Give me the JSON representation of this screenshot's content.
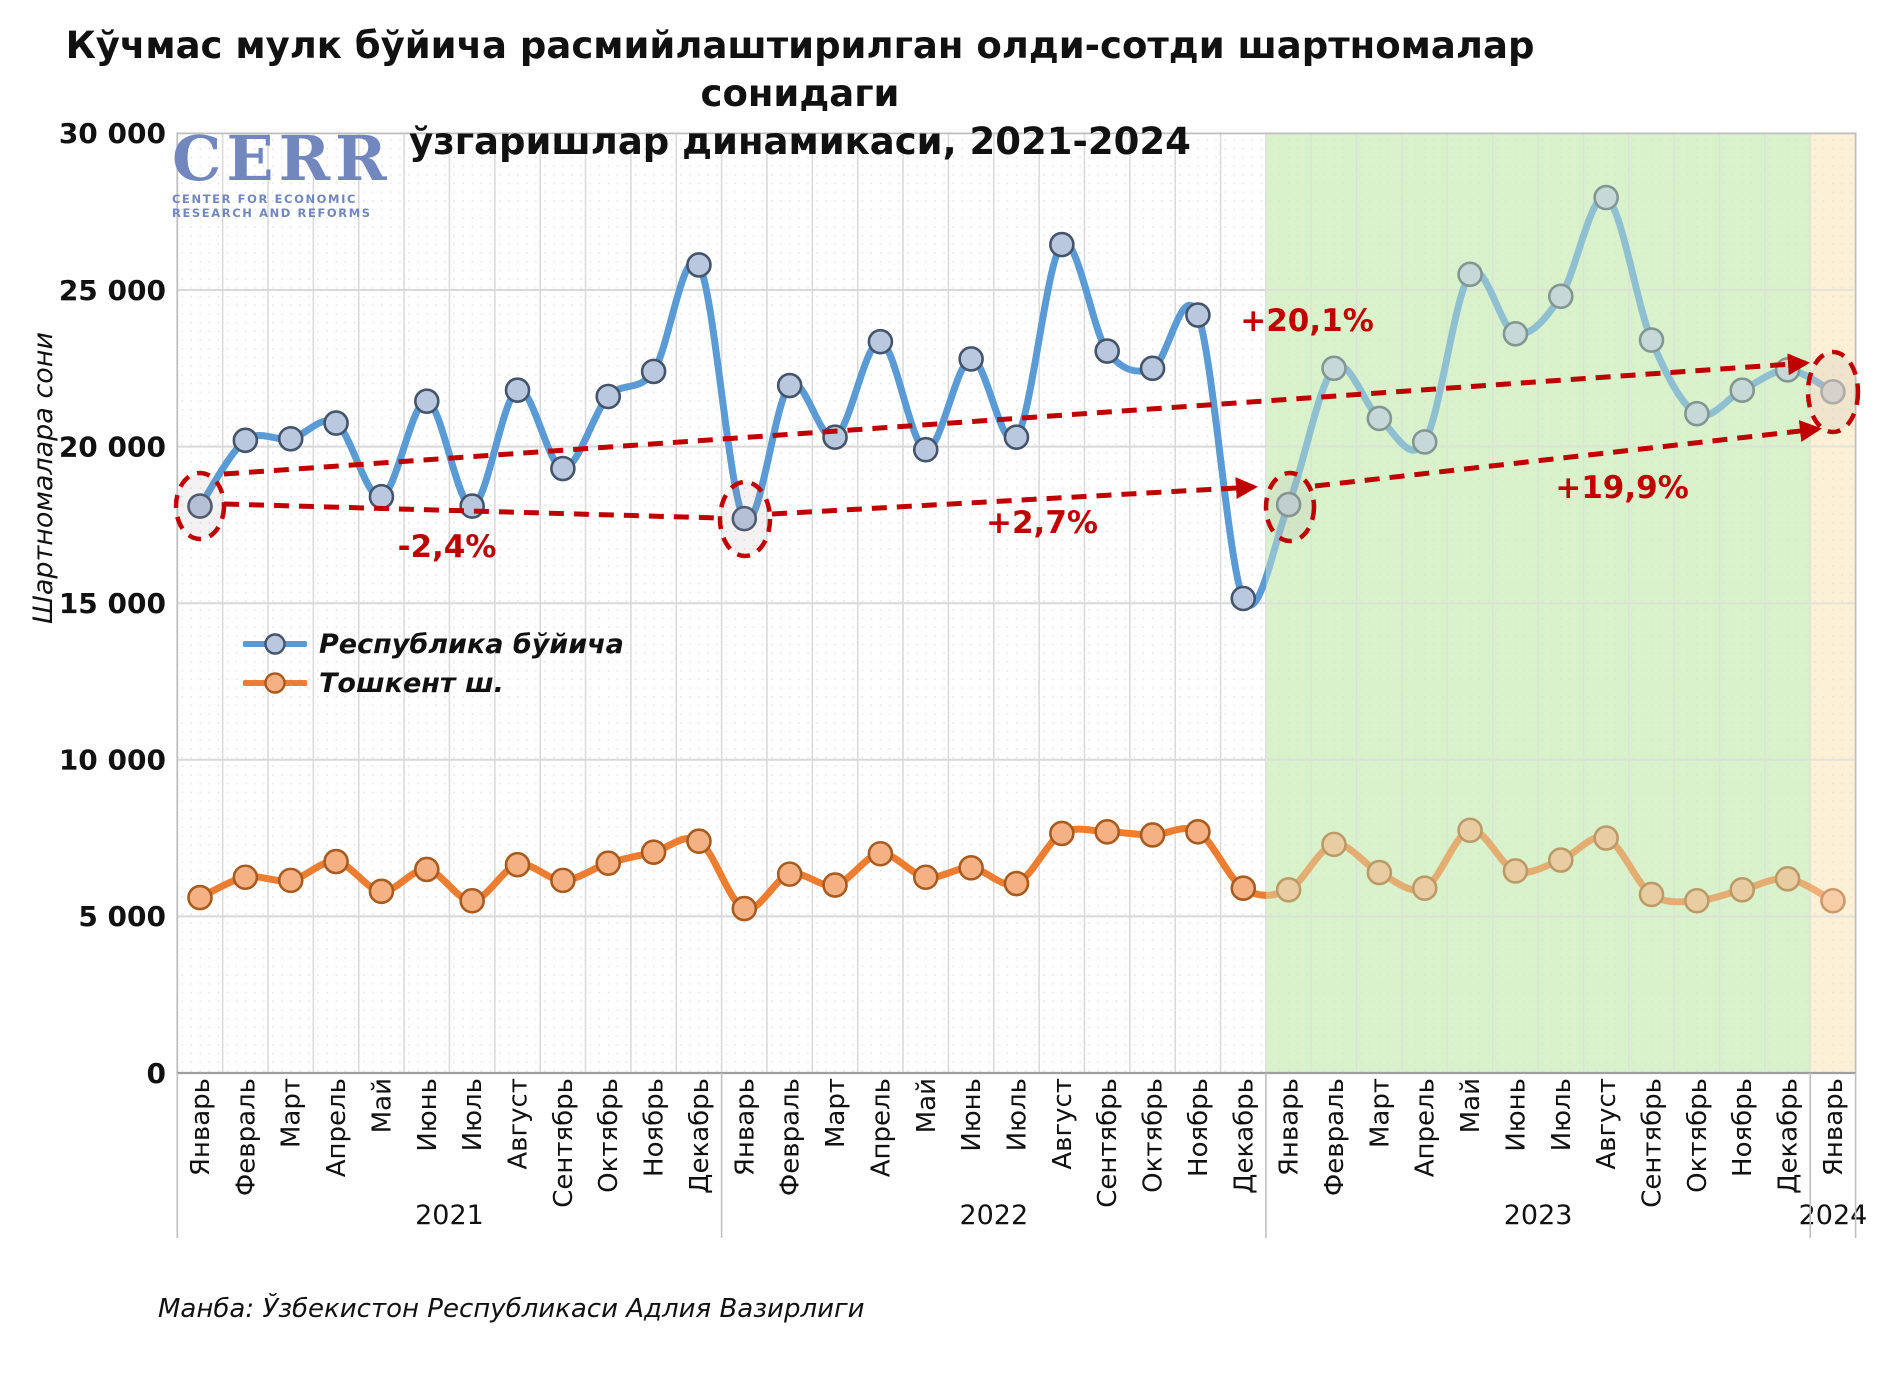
{
  "title": {
    "line1": "Кўчмас мулк бўйича расмийлаштирилган олди-сотди шартномалар сонидаги",
    "line2": "ўзгаришлар динамикаси, 2021-2024"
  },
  "logo": {
    "name": "CERR",
    "subline1": "CENTER FOR ECONOMIC",
    "subline2": "RESEARCH AND REFORMS",
    "color": "#7287BD"
  },
  "source": "Манба: Ўзбекистон Республикаси Адлия Вазирлиги",
  "chart_data": {
    "type": "line",
    "title": "Кўчмас мулк бўйича расмийлаштирилган олди-сотди шартномалар сонидаги ўзгаришлар динамикаси, 2021-2024",
    "ylabel": "Шартномалара сони",
    "ylim": [
      0,
      30000
    ],
    "ytick_step": 5000,
    "ytick_labels": [
      "0",
      "5 000",
      "10 000",
      "15 000",
      "20 000",
      "25 000",
      "30 000"
    ],
    "grid": "on",
    "legend_position": "inside-left",
    "months": [
      "Январь",
      "Февраль",
      "Март",
      "Апрель",
      "Май",
      "Июнь",
      "Июль",
      "Август",
      "Сентябрь",
      "Октябрь",
      "Ноябрь",
      "Декабрь"
    ],
    "years": [
      {
        "label": "2021",
        "n_months": 12
      },
      {
        "label": "2022",
        "n_months": 12
      },
      {
        "label": "2023",
        "n_months": 12
      },
      {
        "label": "2024",
        "n_months": 1
      }
    ],
    "series": [
      {
        "name": "Республика бўйича",
        "color": "#5B9BD5",
        "marker_fill": "#B9C7DF",
        "marker_stroke": "#44546A",
        "values": [
          18100,
          20200,
          20250,
          20750,
          18400,
          21450,
          18100,
          21800,
          19300,
          21600,
          22400,
          25800,
          17700,
          21950,
          20300,
          23350,
          19900,
          22800,
          20300,
          26450,
          23050,
          22500,
          24200,
          15150,
          18150,
          22500,
          20900,
          20150,
          25500,
          23600,
          24800,
          27950,
          23400,
          21050,
          21800,
          22450,
          21750
        ],
        "last_marker_fill": "#C7CBD3",
        "last_marker_stroke": "#7B828E"
      },
      {
        "name": "Тошкент ш.",
        "color": "#ED7D31",
        "marker_fill": "#F4B183",
        "marker_stroke": "#A85B1F",
        "values": [
          5600,
          6250,
          6150,
          6750,
          5800,
          6500,
          5500,
          6650,
          6150,
          6700,
          7050,
          7400,
          5250,
          6350,
          6000,
          7000,
          6250,
          6550,
          6050,
          7650,
          7700,
          7600,
          7700,
          5900,
          5850,
          7300,
          6400,
          5900,
          7750,
          6450,
          6800,
          7500,
          5700,
          5500,
          5850,
          6200,
          5500
        ]
      }
    ],
    "highlight_bands": [
      {
        "year": "2023",
        "color": "#D9F2CC",
        "from_month": 24,
        "to_month": 36
      },
      {
        "year": "2024",
        "color": "#FCF0D6",
        "from_month": 36,
        "to_month": 37
      }
    ],
    "annotations": {
      "color": "#C00000",
      "labels": [
        {
          "text": "-2,4%"
        },
        {
          "text": "+2,7%"
        },
        {
          "text": "+20,1%"
        },
        {
          "text": "+19,9%"
        }
      ]
    }
  }
}
